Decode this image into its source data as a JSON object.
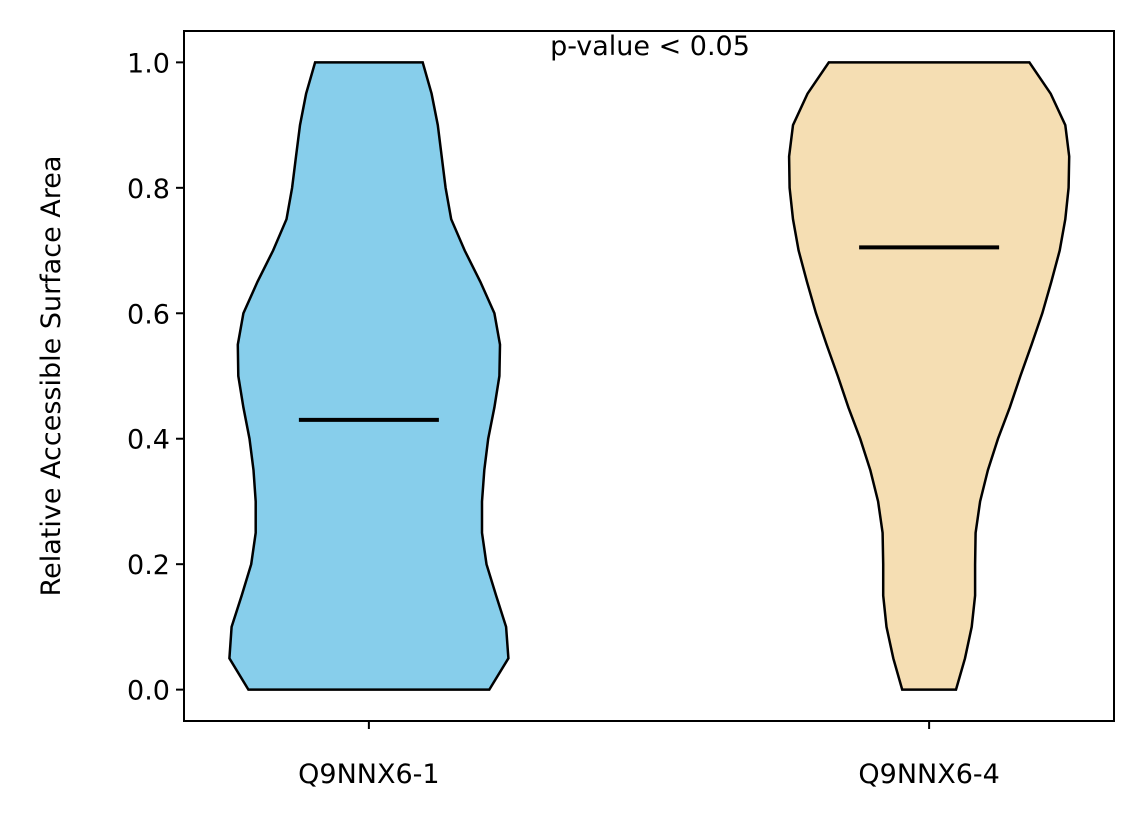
{
  "chart_data": {
    "type": "violin",
    "ylabel": "Relative Accessible Surface Area",
    "annotation": "p-value < 0.05",
    "categories": [
      "Q9NNX6-1",
      "Q9NNX6-4"
    ],
    "xlim": [
      0.67,
      2.33
    ],
    "ylim": [
      -0.05,
      1.05
    ],
    "yticks": [
      {
        "value": 0,
        "label": "0.0"
      },
      0.2,
      0.4,
      0.6,
      0.8,
      {
        "value": 1,
        "label": "1.0"
      }
    ],
    "profile_y": [
      0,
      0.05,
      0.1,
      0.15,
      0.2,
      0.25,
      0.3,
      0.35,
      0.4,
      0.45,
      0.5,
      0.55,
      0.6,
      0.65,
      0.7,
      0.75,
      0.8,
      0.85,
      0.9,
      0.95,
      1.0
    ],
    "violins": [
      {
        "color": "#87ceeb",
        "median": 0.43,
        "half_widths": [
          0.215,
          0.249,
          0.245,
          0.227,
          0.21,
          0.202,
          0.202,
          0.206,
          0.213,
          0.224,
          0.233,
          0.234,
          0.224,
          0.199,
          0.171,
          0.147,
          0.137,
          0.13,
          0.123,
          0.112,
          0.096
        ]
      },
      {
        "color": "#f5deb3",
        "median": 0.705,
        "half_widths": [
          0.048,
          0.064,
          0.076,
          0.082,
          0.082,
          0.083,
          0.091,
          0.105,
          0.123,
          0.144,
          0.163,
          0.183,
          0.202,
          0.218,
          0.233,
          0.243,
          0.249,
          0.25,
          0.243,
          0.217,
          0.179
        ]
      }
    ]
  }
}
